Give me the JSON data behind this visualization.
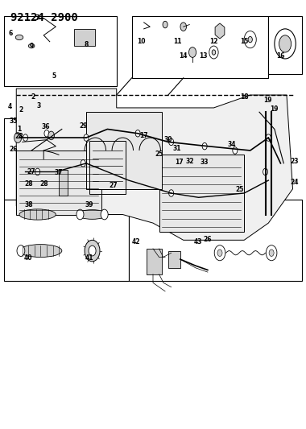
{
  "title": "92124 2900",
  "bg_color": "#ffffff",
  "line_color": "#000000",
  "title_fontsize": 10,
  "title_fontweight": "bold",
  "fig_width": 3.8,
  "fig_height": 5.33,
  "dpi": 100
}
